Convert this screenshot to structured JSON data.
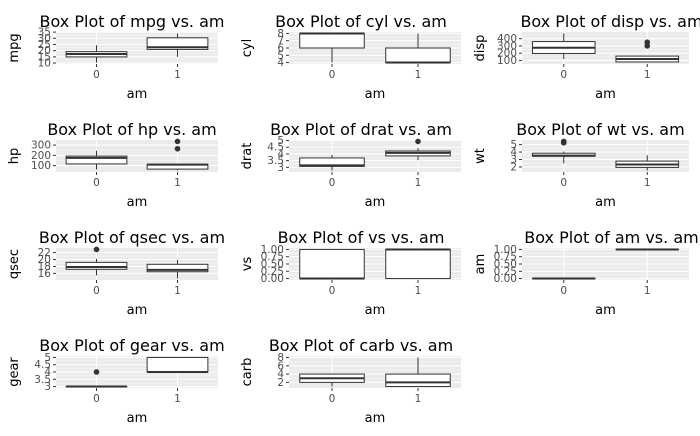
{
  "chart_data": [
    {
      "type": "boxplot",
      "title": "Box Plot of mpg vs. am",
      "xlabel": "am",
      "ylabel": "mpg",
      "categories": [
        "0",
        "1"
      ],
      "ylim": [
        10.4,
        33.9
      ],
      "yticks": [
        10,
        15,
        20,
        25,
        30,
        35
      ],
      "boxes": [
        {
          "category": "0",
          "whisker_low": 10.4,
          "q1": 14.95,
          "median": 17.3,
          "q3": 19.2,
          "whisker_high": 24.4,
          "outliers": []
        },
        {
          "category": "1",
          "whisker_low": 15.0,
          "q1": 21.0,
          "median": 22.8,
          "q3": 30.4,
          "whisker_high": 33.9,
          "outliers": []
        }
      ]
    },
    {
      "type": "boxplot",
      "title": "Box Plot of cyl vs. am",
      "xlabel": "am",
      "ylabel": "cyl",
      "categories": [
        "0",
        "1"
      ],
      "ylim": [
        4,
        8
      ],
      "yticks": [
        4,
        5,
        6,
        7,
        8
      ],
      "boxes": [
        {
          "category": "0",
          "whisker_low": 4,
          "q1": 6,
          "median": 8,
          "q3": 8,
          "whisker_high": 8,
          "outliers": []
        },
        {
          "category": "1",
          "whisker_low": 4,
          "q1": 4,
          "median": 4,
          "q3": 6,
          "whisker_high": 8,
          "outliers": []
        }
      ]
    },
    {
      "type": "boxplot",
      "title": "Box Plot of disp vs. am",
      "xlabel": "am",
      "ylabel": "disp",
      "categories": [
        "0",
        "1"
      ],
      "ylim": [
        71.1,
        472
      ],
      "yticks": [
        100,
        200,
        300,
        400
      ],
      "boxes": [
        {
          "category": "0",
          "whisker_low": 120.1,
          "q1": 196.3,
          "median": 275.8,
          "q3": 360,
          "whisker_high": 472,
          "outliers": []
        },
        {
          "category": "1",
          "whisker_low": 71.1,
          "q1": 79,
          "median": 120.3,
          "q3": 160,
          "whisker_high": 160,
          "outliers": [
            301,
            351
          ]
        }
      ]
    },
    {
      "type": "boxplot",
      "title": "Box Plot of hp vs. am",
      "xlabel": "am",
      "ylabel": "hp",
      "categories": [
        "0",
        "1"
      ],
      "ylim": [
        52,
        335
      ],
      "yticks": [
        100,
        200,
        300
      ],
      "boxes": [
        {
          "category": "0",
          "whisker_low": 62,
          "q1": 116.5,
          "median": 175,
          "q3": 192.5,
          "whisker_high": 245,
          "outliers": []
        },
        {
          "category": "1",
          "whisker_low": 52,
          "q1": 66,
          "median": 109,
          "q3": 113,
          "whisker_high": 113,
          "outliers": [
            264,
            335
          ]
        }
      ]
    },
    {
      "type": "boxplot",
      "title": "Box Plot of drat vs. am",
      "xlabel": "am",
      "ylabel": "drat",
      "categories": [
        "0",
        "1"
      ],
      "ylim": [
        2.76,
        4.93
      ],
      "yticks": [
        3.0,
        3.5,
        4.0,
        4.5,
        5.0
      ],
      "boxes": [
        {
          "category": "0",
          "whisker_low": 2.76,
          "q1": 3.07,
          "median": 3.15,
          "q3": 3.7,
          "whisker_high": 3.92,
          "outliers": []
        },
        {
          "category": "1",
          "whisker_low": 3.54,
          "q1": 3.85,
          "median": 4.08,
          "q3": 4.22,
          "whisker_high": 4.43,
          "outliers": [
            4.93
          ]
        }
      ]
    },
    {
      "type": "boxplot",
      "title": "Box Plot of wt vs. am",
      "xlabel": "am",
      "ylabel": "wt",
      "categories": [
        "0",
        "1"
      ],
      "ylim": [
        1.513,
        5.424
      ],
      "yticks": [
        2,
        3,
        4,
        5
      ],
      "boxes": [
        {
          "category": "0",
          "whisker_low": 2.465,
          "q1": 3.4375,
          "median": 3.52,
          "q3": 3.8425,
          "whisker_high": 4.07,
          "outliers": [
            5.25,
            5.424,
            5.345
          ]
        },
        {
          "category": "1",
          "whisker_low": 1.513,
          "q1": 1.935,
          "median": 2.32,
          "q3": 2.78,
          "whisker_high": 3.57,
          "outliers": []
        }
      ]
    },
    {
      "type": "boxplot",
      "title": "Box Plot of qsec vs. am",
      "xlabel": "am",
      "ylabel": "qsec",
      "categories": [
        "0",
        "1"
      ],
      "ylim": [
        14.5,
        22.9
      ],
      "yticks": [
        16,
        18,
        20,
        22
      ],
      "boxes": [
        {
          "category": "0",
          "whisker_low": 15.41,
          "q1": 17.175,
          "median": 17.82,
          "q3": 19.17,
          "whisker_high": 20.22,
          "outliers": [
            22.9
          ]
        },
        {
          "category": "1",
          "whisker_low": 14.5,
          "q1": 16.46,
          "median": 17.02,
          "q3": 18.61,
          "whisker_high": 19.9,
          "outliers": []
        }
      ]
    },
    {
      "type": "boxplot",
      "title": "Box Plot of vs vs. am",
      "xlabel": "am",
      "ylabel": "vs",
      "categories": [
        "0",
        "1"
      ],
      "ylim": [
        0,
        1
      ],
      "yticks": [
        0.0,
        0.25,
        0.5,
        0.75,
        1.0
      ],
      "yticklabels": [
        "0.00",
        "0.25",
        "0.50",
        "0.75",
        "1.00"
      ],
      "boxes": [
        {
          "category": "0",
          "whisker_low": 0,
          "q1": 0,
          "median": 0,
          "q3": 1,
          "whisker_high": 1,
          "outliers": []
        },
        {
          "category": "1",
          "whisker_low": 0,
          "q1": 0,
          "median": 1,
          "q3": 1,
          "whisker_high": 1,
          "outliers": []
        }
      ]
    },
    {
      "type": "boxplot",
      "title": "Box Plot of am vs. am",
      "xlabel": "am",
      "ylabel": "am",
      "categories": [
        "0",
        "1"
      ],
      "ylim": [
        0,
        1
      ],
      "yticks": [
        0.0,
        0.25,
        0.5,
        0.75,
        1.0
      ],
      "yticklabels": [
        "0.00",
        "0.25",
        "0.50",
        "0.75",
        "1.00"
      ],
      "boxes": [
        {
          "category": "0",
          "whisker_low": 0,
          "q1": 0,
          "median": 0,
          "q3": 0,
          "whisker_high": 0,
          "outliers": []
        },
        {
          "category": "1",
          "whisker_low": 1,
          "q1": 1,
          "median": 1,
          "q3": 1,
          "whisker_high": 1,
          "outliers": []
        }
      ]
    },
    {
      "type": "boxplot",
      "title": "Box Plot of gear vs. am",
      "xlabel": "am",
      "ylabel": "gear",
      "categories": [
        "0",
        "1"
      ],
      "ylim": [
        3,
        5
      ],
      "yticks": [
        3.0,
        3.5,
        4.0,
        4.5,
        5.0
      ],
      "boxes": [
        {
          "category": "0",
          "whisker_low": 3,
          "q1": 3,
          "median": 3,
          "q3": 3,
          "whisker_high": 3,
          "outliers": [
            4
          ]
        },
        {
          "category": "1",
          "whisker_low": 4,
          "q1": 4,
          "median": 4,
          "q3": 5,
          "whisker_high": 5,
          "outliers": []
        }
      ]
    },
    {
      "type": "boxplot",
      "title": "Box Plot of carb vs. am",
      "xlabel": "am",
      "ylabel": "carb",
      "categories": [
        "0",
        "1"
      ],
      "ylim": [
        1,
        8
      ],
      "yticks": [
        2,
        4,
        6,
        8
      ],
      "boxes": [
        {
          "category": "0",
          "whisker_low": 1,
          "q1": 2,
          "median": 3,
          "q3": 4,
          "whisker_high": 4,
          "outliers": []
        },
        {
          "category": "1",
          "whisker_low": 1,
          "q1": 1,
          "median": 2,
          "q3": 4,
          "whisker_high": 8,
          "outliers": []
        }
      ]
    }
  ]
}
